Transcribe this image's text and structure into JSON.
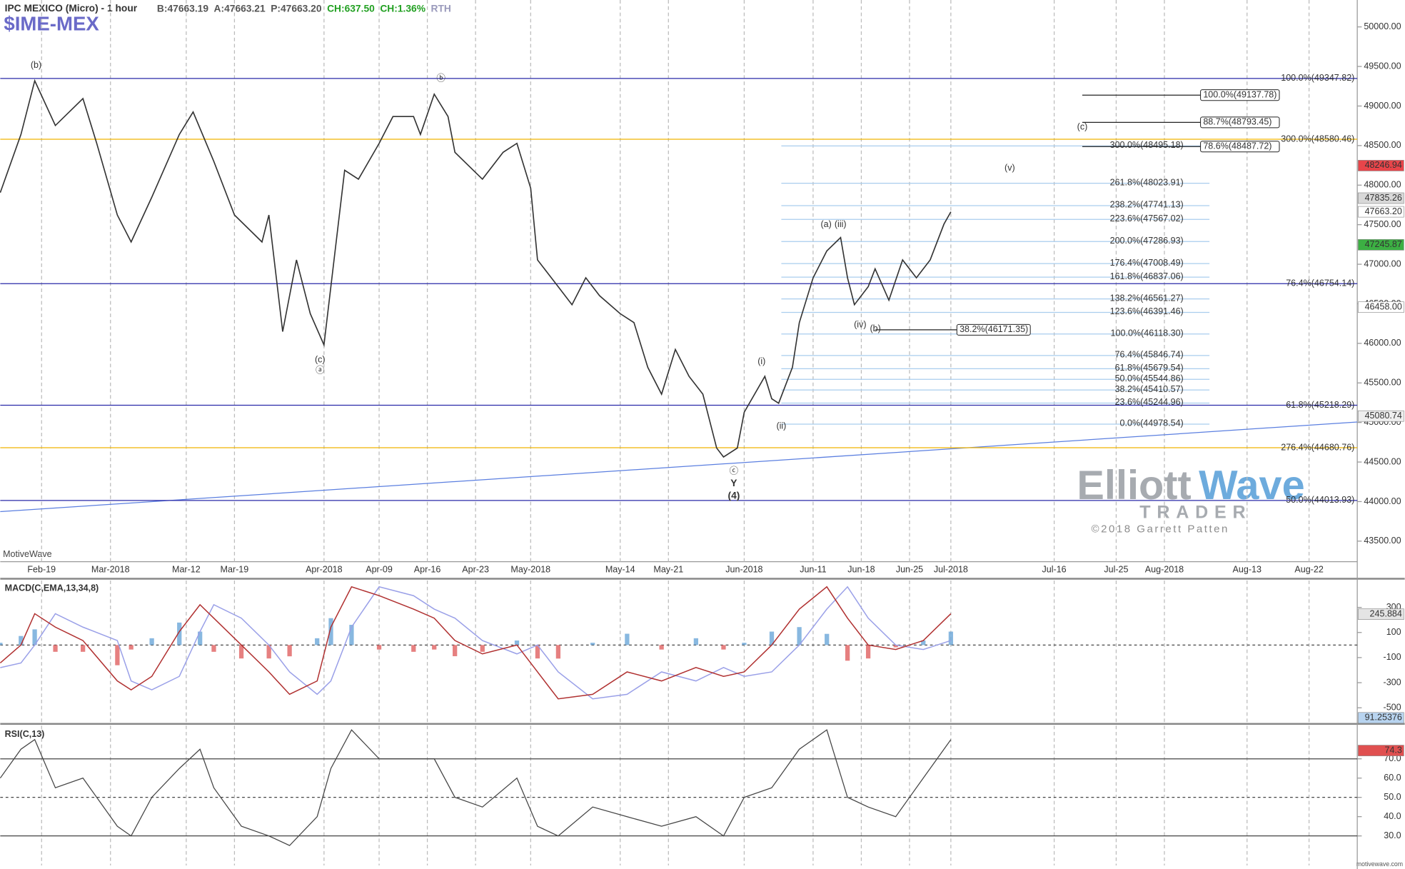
{
  "header": {
    "title": "IPC MEXICO (Micro) - 1 hour",
    "stats": [
      {
        "text": "B:47663.19",
        "color": "#555555"
      },
      {
        "text": "A:47663.21",
        "color": "#555555"
      },
      {
        "text": "P:47663.20",
        "color": "#555555"
      },
      {
        "text": "CH:637.50",
        "color": "#22a022"
      },
      {
        "text": "CH:1.36%",
        "color": "#22a022"
      },
      {
        "text": "RTH",
        "color": "#9999bb"
      }
    ],
    "symbol": "$IME-MEX"
  },
  "watermark": {
    "brand_1": "Elliott",
    "brand_2": "Wave",
    "brand_3": "TRADER",
    "copyright": "©2018 Garrett Patten"
  },
  "footer": {
    "platform": "MotiveWave",
    "site": "motivewave.com"
  },
  "chart_data": [
    {
      "type": "line",
      "color": "#333333",
      "x": [
        "2018-02-13",
        "2018-02-16",
        "2018-02-18",
        "2018-02-21",
        "2018-02-25",
        "2018-02-27",
        "2018-03-02",
        "2018-03-04",
        "2018-03-07",
        "2018-03-11",
        "2018-03-13",
        "2018-03-16",
        "2018-03-19",
        "2018-03-23",
        "2018-03-24",
        "2018-03-26",
        "2018-03-28",
        "2018-03-30",
        "2018-04-01",
        "2018-04-02",
        "2018-04-04",
        "2018-04-06",
        "2018-04-09",
        "2018-04-11",
        "2018-04-14",
        "2018-04-15",
        "2018-04-17",
        "2018-04-19",
        "2018-04-20",
        "2018-04-24",
        "2018-04-27",
        "2018-04-29",
        "2018-05-01",
        "2018-05-02",
        "2018-05-05",
        "2018-05-07",
        "2018-05-09",
        "2018-05-11",
        "2018-05-14",
        "2018-05-16",
        "2018-05-18",
        "2018-05-20",
        "2018-05-22",
        "2018-05-24",
        "2018-05-26",
        "2018-05-28",
        "2018-05-29",
        "2018-05-31",
        "2018-06-01",
        "2018-06-04",
        "2018-06-05",
        "2018-06-06",
        "2018-06-08",
        "2018-06-09",
        "2018-06-11",
        "2018-06-13",
        "2018-06-15",
        "2018-06-16",
        "2018-06-17",
        "2018-06-19",
        "2018-06-20",
        "2018-06-22",
        "2018-06-24",
        "2018-06-26",
        "2018-06-28",
        "2018-06-30",
        "2018-07-01"
      ],
      "values": [
        47905,
        48640,
        49320,
        48754,
        49094,
        48528,
        47622,
        47282,
        47848,
        48640,
        48924,
        48301,
        47622,
        47282,
        47622,
        46149,
        47055,
        46376,
        45980,
        46716,
        48188,
        48075,
        48528,
        48867,
        48867,
        48640,
        49150,
        48867,
        48415,
        48075,
        48415,
        48528,
        47961,
        47055,
        46716,
        46489,
        46829,
        46602,
        46376,
        46262,
        45697,
        45357,
        45923,
        45583,
        45357,
        44677,
        44564,
        44677,
        45130,
        45583,
        45300,
        45243,
        45697,
        46262,
        46829,
        47168,
        47338,
        46829,
        46489,
        46716,
        46942,
        46545,
        47055,
        46829,
        47055,
        47508,
        47663.2
      ],
      "xlim": [
        "2018-02-13",
        "2018-08-29"
      ],
      "ylim": [
        43240,
        50340
      ],
      "xticks": [
        {
          "value": "2018-02-19",
          "label": "Feb-19"
        },
        {
          "value": "2018-03-01",
          "label": "Mar-2018"
        },
        {
          "value": "2018-03-12",
          "label": "Mar-12"
        },
        {
          "value": "2018-03-19",
          "label": "Mar-19"
        },
        {
          "value": "2018-04-01",
          "label": "Apr-2018"
        },
        {
          "value": "2018-04-09",
          "label": "Apr-09"
        },
        {
          "value": "2018-04-16",
          "label": "Apr-16"
        },
        {
          "value": "2018-04-23",
          "label": "Apr-23"
        },
        {
          "value": "2018-05-01",
          "label": "May-2018"
        },
        {
          "value": "2018-05-14",
          "label": "May-14"
        },
        {
          "value": "2018-05-21",
          "label": "May-21"
        },
        {
          "value": "2018-06-01",
          "label": "Jun-2018"
        },
        {
          "value": "2018-06-11",
          "label": "Jun-11"
        },
        {
          "value": "2018-06-18",
          "label": "Jun-18"
        },
        {
          "value": "2018-06-25",
          "label": "Jun-25"
        },
        {
          "value": "2018-07-01",
          "label": "Jul-2018"
        },
        {
          "value": "2018-07-16",
          "label": "Jul-16"
        },
        {
          "value": "2018-07-25",
          "label": "Jul-25"
        },
        {
          "value": "2018-08-01",
          "label": "Aug-2018"
        },
        {
          "value": "2018-08-13",
          "label": "Aug-13"
        },
        {
          "value": "2018-08-22",
          "label": "Aug-22"
        }
      ],
      "yticks": [
        {
          "value": 43500,
          "label": "43500.00"
        },
        {
          "value": 44000,
          "label": "44000.00"
        },
        {
          "value": 44500,
          "label": "44500.00"
        },
        {
          "value": 45000,
          "label": "45000.00"
        },
        {
          "value": 45500,
          "label": "45500.00"
        },
        {
          "value": 46000,
          "label": "46000.00"
        },
        {
          "value": 46500,
          "label": "46500.00"
        },
        {
          "value": 47000,
          "label": "47000.00"
        },
        {
          "value": 47500,
          "label": "47500.00"
        },
        {
          "value": 48000,
          "label": "48000.00"
        },
        {
          "value": 48500,
          "label": "48500.00"
        },
        {
          "value": 49000,
          "label": "49000.00"
        },
        {
          "value": 49500,
          "label": "49500.00"
        },
        {
          "value": 50000,
          "label": "50000.00"
        }
      ],
      "grid": "x",
      "levels": [
        {
          "label": "100.0%(49347.82)",
          "value": 49347.82,
          "style": "full",
          "color": "#2a2aa8"
        },
        {
          "label": "76.4%(46754.14)",
          "value": 46754.14,
          "style": "full",
          "color": "#2a2aa8"
        },
        {
          "label": "61.8%(45218.29)",
          "value": 45218.29,
          "style": "full",
          "color": "#2a2aa8"
        },
        {
          "label": "50.0%(44013.93)",
          "value": 44013.93,
          "style": "full",
          "color": "#2a2aa8"
        },
        {
          "label": "300.0%(48580.46)",
          "value": 48580.46,
          "style": "full",
          "color": "#f0b400"
        },
        {
          "label": "276.4%(44680.76)",
          "value": 44680.76,
          "style": "full",
          "color": "#f0b400"
        },
        {
          "label": "300.0%(48495.18)",
          "value": 48495.18,
          "style": "light",
          "color": "#a9cdee"
        },
        {
          "label": "261.8%(48023.91)",
          "value": 48023.91,
          "style": "light",
          "color": "#a9cdee"
        },
        {
          "label": "238.2%(47741.13)",
          "value": 47741.13,
          "style": "light",
          "color": "#a9cdee"
        },
        {
          "label": "223.6%(47567.02)",
          "value": 47567.02,
          "style": "light",
          "color": "#a9cdee"
        },
        {
          "label": "200.0%(47286.93)",
          "value": 47286.93,
          "style": "light",
          "color": "#a9cdee"
        },
        {
          "label": "176.4%(47008.49)",
          "value": 47008.49,
          "style": "light",
          "color": "#a9cdee"
        },
        {
          "label": "161.8%(46837.06)",
          "value": 46837.06,
          "style": "light",
          "color": "#a9cdee"
        },
        {
          "label": "138.2%(46561.27)",
          "value": 46561.27,
          "style": "light",
          "color": "#a9cdee"
        },
        {
          "label": "123.6%(46391.46)",
          "value": 46391.46,
          "style": "light",
          "color": "#a9cdee"
        },
        {
          "label": "100.0%(46118.30)",
          "value": 46118.3,
          "style": "light",
          "color": "#a9cdee"
        },
        {
          "label": "76.4%(45846.74)",
          "value": 45846.74,
          "style": "light",
          "color": "#a9cdee"
        },
        {
          "label": "61.8%(45679.54)",
          "value": 45679.54,
          "style": "light",
          "color": "#a9cdee"
        },
        {
          "label": "50.0%(45544.86)",
          "value": 45544.86,
          "style": "light",
          "color": "#a9cdee"
        },
        {
          "label": "38.2%(45410.57)",
          "value": 45410.57,
          "style": "light",
          "color": "#a9cdee"
        },
        {
          "label": "23.6%(45244.96)",
          "value": 45244.96,
          "style": "light",
          "color": "#a9cdee"
        },
        {
          "label": "0.0%(44978.54)",
          "value": 44978.54,
          "style": "light",
          "color": "#a9cdee"
        },
        {
          "label": "100.0%(49137.78)",
          "value": 49137.78,
          "style": "target",
          "color": "#222222"
        },
        {
          "label": "88.7%(48793.45)",
          "value": 48793.45,
          "style": "target",
          "color": "#222222"
        },
        {
          "label": "78.6%(48487.72)",
          "value": 48487.72,
          "style": "target",
          "color": "#222222"
        },
        {
          "label": "38.2%(46171.35)",
          "value": 46171.35,
          "style": "target-low",
          "color": "#222222"
        }
      ],
      "trendline": {
        "x": [
          "2018-02-13",
          "2018-08-29"
        ],
        "values": [
          43873,
          45006
        ],
        "color": "#5b7fe0"
      },
      "annotations": [
        {
          "text": "(b)",
          "color": "#2020c0"
        },
        {
          "text": "(c)",
          "color": "#2020c0"
        },
        {
          "text": "ⓐ",
          "color": "#2020c0"
        },
        {
          "text": "ⓑ",
          "color": "#2020c0"
        },
        {
          "text": "ⓒ",
          "color": "#2020c0"
        },
        {
          "text": "Y",
          "color": "#2020c0"
        },
        {
          "text": "(4)",
          "color": "#2020c0"
        },
        {
          "text": "(i)",
          "color": "#2020c0"
        },
        {
          "text": "(ii)",
          "color": "#2020c0"
        },
        {
          "text": "(a)",
          "color": "#d02020"
        },
        {
          "text": "(iii)",
          "color": "#2020c0"
        },
        {
          "text": "(iv)",
          "color": "#2020c0"
        },
        {
          "text": "(b)",
          "color": "#d02020"
        },
        {
          "text": "(c)",
          "color": "#d02020"
        },
        {
          "text": "(v)",
          "color": "#2020c0"
        }
      ],
      "price_tags": [
        {
          "value": 48246.94,
          "label": "48246.94",
          "color": "#e8454a",
          "text_color": "#ffffff"
        },
        {
          "value": 47835.26,
          "label": "47835.26",
          "color": "#d8d8d8",
          "text_color": "#222222"
        },
        {
          "value": 47663.2,
          "label": "47663.20",
          "color": "#ffffff",
          "text_color": "#222222"
        },
        {
          "value": 47245.87,
          "label": "47245.87",
          "color": "#3cb043",
          "text_color": "#ffffff"
        },
        {
          "value": 46458,
          "label": "46458.00",
          "color": "#ffffff",
          "text_color": "#222222"
        },
        {
          "value": 45080.74,
          "label": "45080.74",
          "color": "#eeeeee",
          "text_color": "#222222"
        }
      ]
    },
    {
      "type": "macd",
      "title": "MACD(C,EMA,13,34,8)",
      "x": [
        "2018-02-13",
        "2018-02-16",
        "2018-02-18",
        "2018-02-21",
        "2018-02-25",
        "2018-03-02",
        "2018-03-04",
        "2018-03-07",
        "2018-03-11",
        "2018-03-14",
        "2018-03-16",
        "2018-03-20",
        "2018-03-24",
        "2018-03-27",
        "2018-03-31",
        "2018-04-02",
        "2018-04-05",
        "2018-04-09",
        "2018-04-14",
        "2018-04-17",
        "2018-04-20",
        "2018-04-24",
        "2018-04-29",
        "2018-05-02",
        "2018-05-05",
        "2018-05-10",
        "2018-05-15",
        "2018-05-20",
        "2018-05-25",
        "2018-05-29",
        "2018-06-01",
        "2018-06-05",
        "2018-06-09",
        "2018-06-13",
        "2018-06-16",
        "2018-06-19",
        "2018-06-23",
        "2018-06-27",
        "2018-07-01"
      ],
      "series": [
        {
          "name": "MACD",
          "color": "#b03030",
          "values": [
            -143,
            0,
            250,
            143,
            36,
            -286,
            -357,
            -250,
            107,
            321,
            214,
            0,
            -214,
            -393,
            -286,
            143,
            464,
            393,
            286,
            214,
            36,
            -71,
            0,
            -214,
            -429,
            -393,
            -214,
            -286,
            -179,
            -250,
            -214,
            0,
            286,
            464,
            214,
            0,
            -36,
            36,
            250
          ]
        },
        {
          "name": "Signal",
          "color": "#9aa0e8",
          "values": [
            -180,
            -143,
            0,
            250,
            143,
            36,
            -286,
            -357,
            -250,
            107,
            321,
            214,
            0,
            -214,
            -393,
            -286,
            143,
            464,
            393,
            286,
            214,
            36,
            -71,
            0,
            -214,
            -429,
            -393,
            -214,
            -286,
            -179,
            -250,
            -214,
            0,
            286,
            464,
            214,
            0,
            -36,
            36
          ]
        },
        {
          "name": "Histogram",
          "color": "#6aa6d8",
          "negative_color": "#e06060",
          "values": [
            18,
            72,
            125,
            -54,
            -54,
            -161,
            -36,
            54,
            179,
            107,
            -54,
            -107,
            -107,
            -90,
            54,
            214,
            161,
            -36,
            -54,
            -36,
            -89,
            -54,
            36,
            -107,
            -108,
            18,
            90,
            -36,
            54,
            -36,
            18,
            107,
            143,
            89,
            -125,
            -107,
            -18,
            36,
            107
          ]
        }
      ],
      "ylim": [
        -614,
        514
      ],
      "yticks": [
        -500,
        -300,
        -100,
        100,
        300
      ],
      "price_tags": [
        {
          "value": 245.884,
          "label": "245.884",
          "color": "#e4e4e4",
          "text_color": "#222222"
        }
      ]
    },
    {
      "type": "rsi",
      "title": "RSI(C,13)",
      "x": [
        "2018-02-13",
        "2018-02-16",
        "2018-02-18",
        "2018-02-21",
        "2018-02-25",
        "2018-03-02",
        "2018-03-04",
        "2018-03-07",
        "2018-03-11",
        "2018-03-14",
        "2018-03-16",
        "2018-03-20",
        "2018-03-24",
        "2018-03-27",
        "2018-03-31",
        "2018-04-02",
        "2018-04-05",
        "2018-04-09",
        "2018-04-14",
        "2018-04-17",
        "2018-04-20",
        "2018-04-24",
        "2018-04-29",
        "2018-05-02",
        "2018-05-05",
        "2018-05-10",
        "2018-05-15",
        "2018-05-20",
        "2018-05-25",
        "2018-05-29",
        "2018-06-01",
        "2018-06-05",
        "2018-06-09",
        "2018-06-13",
        "2018-06-16",
        "2018-06-19",
        "2018-06-23",
        "2018-06-27",
        "2018-07-01"
      ],
      "values": [
        60,
        75,
        80,
        55,
        60,
        35,
        30,
        50,
        65,
        75,
        55,
        35,
        30,
        25,
        40,
        65,
        85,
        70,
        70,
        70,
        50,
        45,
        60,
        35,
        30,
        45,
        40,
        35,
        40,
        30,
        50,
        55,
        75,
        85,
        50,
        45,
        40,
        60,
        80
      ],
      "color": "#444444",
      "ylim": [
        14.7,
        87.2
      ],
      "yticks": [
        {
          "value": 30,
          "label": "30.0"
        },
        {
          "value": 40,
          "label": "40.0"
        },
        {
          "value": 50,
          "label": "50.0"
        },
        {
          "value": 60,
          "label": "60.0"
        },
        {
          "value": 70,
          "label": "70.0"
        }
      ],
      "price_tags": [
        {
          "value": 91.25376,
          "label": "91.25376",
          "color": "#b8d4f0",
          "text_color": "#222222"
        },
        {
          "value": 74.3,
          "label": "74.3",
          "color": "#e05050",
          "text_color": "#ffffff"
        }
      ]
    }
  ]
}
